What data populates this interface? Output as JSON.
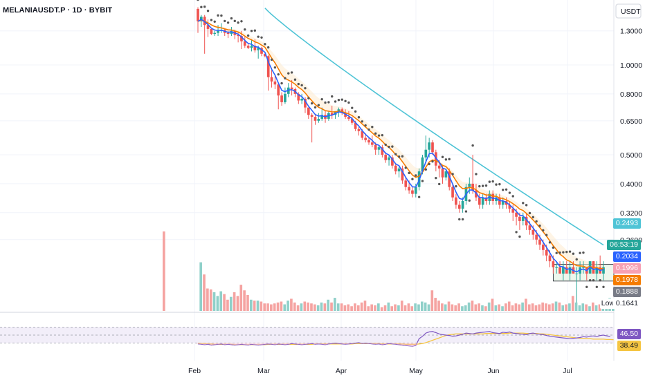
{
  "header": {
    "symbol_line": "MELANIAUSDT.P · 1D · BYBIT"
  },
  "price_axis": {
    "currency": "USDT",
    "ticks": [
      "1.3000",
      "1.0000",
      "0.8000",
      "0.6500",
      "0.5000",
      "0.4000",
      "0.3200",
      "0.2600"
    ]
  },
  "time_axis": {
    "labels": [
      "Feb",
      "Mar",
      "Apr",
      "May",
      "Jun",
      "Jul"
    ]
  },
  "price_tags": {
    "ma_slow": {
      "text": "0.2493",
      "color": "#4fc4d6"
    },
    "last_price": {
      "text": "06:53:19",
      "color": "#26a69a"
    },
    "ema_fast": {
      "text": "0.2034",
      "color": "#2962ff"
    },
    "ma_mid": {
      "text": "0.1996",
      "color": "#f7a0b3"
    },
    "ema_orange": {
      "text": "0.1978",
      "color": "#f57c00"
    },
    "range_bottom": {
      "text": "0.1888",
      "color": "#787b86"
    },
    "low": {
      "label": "Low",
      "text": "0.1641"
    }
  },
  "rsi_tags": {
    "rsi": {
      "text": "46.50",
      "color": "#7e57c2"
    },
    "rsi_ma": {
      "text": "38.49",
      "color": "#f5c542"
    }
  },
  "colors": {
    "up": "#26a69a",
    "down": "#ef5350",
    "up_volume": "#8fd0c9",
    "down_volume": "#f5a3a1",
    "ema_fast": "#2962ff",
    "ema_orange": "#f57c00",
    "ma_slow": "#4fc4d6",
    "sar": "#555555",
    "rsi_line": "#7e57c2",
    "rsi_ma": "#f5c542",
    "rsi_band": "#ede7f6"
  },
  "chart_data": {
    "type": "candlestick",
    "ohlc_series": [
      [
        1.54,
        1.56,
        1.28,
        1.4
      ],
      [
        1.4,
        1.47,
        1.34,
        1.45
      ],
      [
        1.45,
        1.47,
        1.09,
        1.36
      ],
      [
        1.36,
        1.42,
        1.24,
        1.32
      ],
      [
        1.32,
        1.32,
        1.26,
        1.27
      ],
      [
        1.27,
        1.3,
        1.25,
        1.28
      ],
      [
        1.28,
        1.36,
        1.25,
        1.3
      ],
      [
        1.3,
        1.38,
        1.28,
        1.31
      ],
      [
        1.31,
        1.32,
        1.25,
        1.28
      ],
      [
        1.28,
        1.3,
        1.23,
        1.27
      ],
      [
        1.27,
        1.34,
        1.25,
        1.3
      ],
      [
        1.3,
        1.31,
        1.22,
        1.26
      ],
      [
        1.26,
        1.29,
        1.19,
        1.25
      ],
      [
        1.25,
        1.3,
        1.13,
        1.2
      ],
      [
        1.2,
        1.24,
        1.14,
        1.16
      ],
      [
        1.16,
        1.18,
        1.13,
        1.14
      ],
      [
        1.14,
        1.22,
        1.11,
        1.16
      ],
      [
        1.16,
        1.22,
        1.1,
        1.12
      ],
      [
        1.12,
        1.16,
        1.05,
        1.14
      ],
      [
        1.14,
        1.15,
        1.07,
        1.09
      ],
      [
        1.09,
        1.09,
        1.06,
        1.07
      ],
      [
        1.07,
        1.08,
        0.82,
        0.91
      ],
      [
        0.91,
        0.98,
        0.84,
        0.88
      ],
      [
        0.88,
        0.92,
        0.83,
        0.86
      ],
      [
        0.86,
        0.87,
        0.71,
        0.79
      ],
      [
        0.79,
        0.81,
        0.73,
        0.75
      ],
      [
        0.75,
        0.84,
        0.74,
        0.8
      ],
      [
        0.8,
        0.87,
        0.78,
        0.84
      ],
      [
        0.84,
        0.89,
        0.79,
        0.83
      ],
      [
        0.83,
        0.84,
        0.78,
        0.8
      ],
      [
        0.8,
        0.81,
        0.74,
        0.76
      ],
      [
        0.76,
        0.8,
        0.74,
        0.77
      ],
      [
        0.77,
        0.78,
        0.69,
        0.72
      ],
      [
        0.72,
        0.72,
        0.66,
        0.68
      ],
      [
        0.68,
        0.69,
        0.55,
        0.67
      ],
      [
        0.67,
        0.68,
        0.63,
        0.65
      ],
      [
        0.65,
        0.69,
        0.64,
        0.66
      ],
      [
        0.66,
        0.72,
        0.65,
        0.68
      ],
      [
        0.68,
        0.7,
        0.64,
        0.66
      ],
      [
        0.66,
        0.7,
        0.65,
        0.69
      ],
      [
        0.69,
        0.73,
        0.66,
        0.68
      ],
      [
        0.68,
        0.7,
        0.66,
        0.7
      ],
      [
        0.7,
        0.72,
        0.67,
        0.71
      ],
      [
        0.71,
        0.72,
        0.68,
        0.69
      ],
      [
        0.69,
        0.71,
        0.66,
        0.67
      ],
      [
        0.67,
        0.7,
        0.65,
        0.66
      ],
      [
        0.66,
        0.67,
        0.63,
        0.64
      ],
      [
        0.64,
        0.65,
        0.6,
        0.61
      ],
      [
        0.61,
        0.62,
        0.58,
        0.6
      ],
      [
        0.6,
        0.61,
        0.56,
        0.57
      ],
      [
        0.57,
        0.59,
        0.55,
        0.56
      ],
      [
        0.56,
        0.57,
        0.54,
        0.55
      ],
      [
        0.55,
        0.58,
        0.53,
        0.54
      ],
      [
        0.54,
        0.55,
        0.5,
        0.52
      ],
      [
        0.52,
        0.54,
        0.5,
        0.53
      ],
      [
        0.53,
        0.54,
        0.49,
        0.5
      ],
      [
        0.5,
        0.51,
        0.47,
        0.48
      ],
      [
        0.48,
        0.5,
        0.46,
        0.49
      ],
      [
        0.49,
        0.5,
        0.45,
        0.46
      ],
      [
        0.46,
        0.47,
        0.43,
        0.44
      ],
      [
        0.44,
        0.46,
        0.42,
        0.45
      ],
      [
        0.45,
        0.46,
        0.4,
        0.41
      ],
      [
        0.41,
        0.42,
        0.38,
        0.39
      ],
      [
        0.39,
        0.41,
        0.37,
        0.38
      ],
      [
        0.38,
        0.39,
        0.36,
        0.37
      ],
      [
        0.37,
        0.4,
        0.36,
        0.39
      ],
      [
        0.39,
        0.45,
        0.38,
        0.44
      ],
      [
        0.44,
        0.5,
        0.43,
        0.49
      ],
      [
        0.49,
        0.58,
        0.47,
        0.52
      ],
      [
        0.52,
        0.57,
        0.49,
        0.55
      ],
      [
        0.55,
        0.56,
        0.5,
        0.51
      ],
      [
        0.51,
        0.52,
        0.44,
        0.46
      ],
      [
        0.46,
        0.48,
        0.42,
        0.45
      ],
      [
        0.45,
        0.46,
        0.4,
        0.42
      ],
      [
        0.42,
        0.45,
        0.41,
        0.44
      ],
      [
        0.44,
        0.45,
        0.38,
        0.39
      ],
      [
        0.39,
        0.4,
        0.35,
        0.36
      ],
      [
        0.36,
        0.37,
        0.33,
        0.34
      ],
      [
        0.34,
        0.35,
        0.32,
        0.33
      ],
      [
        0.33,
        0.36,
        0.32,
        0.35
      ],
      [
        0.35,
        0.4,
        0.34,
        0.39
      ],
      [
        0.39,
        0.42,
        0.37,
        0.4
      ],
      [
        0.4,
        0.5,
        0.37,
        0.38
      ],
      [
        0.38,
        0.4,
        0.35,
        0.36
      ],
      [
        0.36,
        0.37,
        0.33,
        0.34
      ],
      [
        0.34,
        0.37,
        0.33,
        0.36
      ],
      [
        0.36,
        0.37,
        0.34,
        0.35
      ],
      [
        0.35,
        0.38,
        0.34,
        0.37
      ],
      [
        0.37,
        0.38,
        0.34,
        0.35
      ],
      [
        0.35,
        0.37,
        0.34,
        0.36
      ],
      [
        0.36,
        0.37,
        0.33,
        0.34
      ],
      [
        0.34,
        0.36,
        0.33,
        0.35
      ],
      [
        0.35,
        0.36,
        0.33,
        0.34
      ],
      [
        0.34,
        0.35,
        0.32,
        0.33
      ],
      [
        0.33,
        0.34,
        0.3,
        0.32
      ],
      [
        0.32,
        0.33,
        0.29,
        0.31
      ],
      [
        0.31,
        0.32,
        0.28,
        0.3
      ],
      [
        0.3,
        0.32,
        0.29,
        0.31
      ],
      [
        0.31,
        0.32,
        0.28,
        0.29
      ],
      [
        0.29,
        0.3,
        0.27,
        0.28
      ],
      [
        0.28,
        0.29,
        0.26,
        0.27
      ],
      [
        0.27,
        0.28,
        0.25,
        0.26
      ],
      [
        0.26,
        0.27,
        0.24,
        0.25
      ],
      [
        0.25,
        0.26,
        0.23,
        0.24
      ],
      [
        0.24,
        0.25,
        0.22,
        0.23
      ],
      [
        0.23,
        0.24,
        0.21,
        0.22
      ],
      [
        0.22,
        0.23,
        0.2,
        0.21
      ],
      [
        0.21,
        0.22,
        0.2,
        0.21
      ],
      [
        0.21,
        0.22,
        0.2,
        0.2
      ],
      [
        0.2,
        0.22,
        0.19,
        0.21
      ],
      [
        0.21,
        0.22,
        0.2,
        0.2
      ],
      [
        0.2,
        0.22,
        0.19,
        0.21
      ],
      [
        0.21,
        0.22,
        0.2,
        0.2
      ],
      [
        0.2,
        0.21,
        0.16,
        0.2
      ],
      [
        0.2,
        0.22,
        0.19,
        0.21
      ],
      [
        0.21,
        0.22,
        0.2,
        0.21
      ],
      [
        0.21,
        0.21,
        0.19,
        0.2
      ],
      [
        0.2,
        0.22,
        0.2,
        0.22
      ],
      [
        0.22,
        0.22,
        0.2,
        0.2
      ],
      [
        0.2,
        0.22,
        0.19,
        0.21
      ],
      [
        0.21,
        0.23,
        0.2,
        0.2
      ],
      [
        0.2,
        0.22,
        0.19,
        0.21
      ]
    ],
    "volume": [
      8.5,
      5.2,
      3.9,
      2.4,
      2.3,
      2.0,
      1.6,
      2.1,
      1.8,
      1.2,
      1.5,
      2.0,
      1.6,
      2.8,
      2.2,
      1.7,
      1.2,
      1.1,
      1.1,
      1.0,
      0.8,
      0.8,
      0.7,
      0.8,
      0.9,
      1.0,
      0.7,
      1.1,
      1.3,
      0.9,
      0.6,
      0.8,
      1.0,
      0.9,
      0.8,
      0.7,
      0.6,
      0.9,
      0.8,
      1.2,
      0.9,
      1.4,
      0.8,
      0.8,
      0.6,
      0.7,
      0.5,
      0.8,
      0.6,
      0.9,
      1.1,
      0.5,
      0.7,
      0.6,
      0.8,
      0.4,
      0.6,
      0.9,
      0.5,
      0.7,
      0.6,
      1.1,
      0.6,
      0.8,
      0.5,
      0.8,
      0.7,
      1.0,
      0.9,
      0.7,
      2.2,
      1.4,
      1.1,
      0.8,
      0.7,
      1.0,
      0.7,
      0.6,
      0.8,
      0.5,
      0.6,
      0.9,
      1.1,
      0.7,
      0.8,
      0.6,
      0.5,
      0.9,
      1.3,
      0.6,
      0.7,
      0.5,
      0.8,
      1.0,
      0.6,
      0.8,
      0.7,
      0.9,
      1.3,
      0.7,
      0.8,
      0.6,
      0.7,
      0.9,
      0.8,
      0.7,
      0.8,
      1.0,
      0.9,
      0.6,
      0.7,
      0.8,
      1.6,
      0.9,
      0.6,
      0.8,
      0.7,
      0.5,
      0.9,
      0.6,
      0.7,
      1.1,
      1.0,
      1.4,
      1.2
    ],
    "rsi": [
      28,
      27,
      26,
      27,
      25,
      26,
      27,
      28,
      26,
      27,
      26,
      25,
      26,
      27,
      26,
      25,
      27,
      26,
      25,
      26,
      27,
      28,
      27,
      26,
      28,
      27,
      26,
      27,
      29,
      28,
      27,
      26,
      27,
      28,
      29,
      27,
      28,
      27,
      26,
      28,
      29,
      30,
      29,
      28,
      27,
      28,
      29,
      30,
      31,
      29,
      30,
      29,
      28,
      27,
      28,
      26,
      27,
      29,
      28,
      27,
      26,
      25,
      24,
      23,
      22,
      24,
      41,
      47,
      55,
      58,
      59,
      56,
      53,
      51,
      50,
      49,
      47,
      48,
      50,
      52,
      55,
      54,
      53,
      55,
      56,
      57,
      58,
      59,
      56,
      55,
      54,
      57,
      56,
      58,
      55,
      54,
      53,
      52,
      51,
      54,
      55,
      53,
      52,
      51,
      49,
      47,
      46,
      45,
      44,
      43,
      42,
      41,
      42,
      43,
      44,
      46,
      45,
      47,
      48,
      46,
      49,
      50,
      48,
      46.5
    ],
    "rsi_ma": [
      30,
      29,
      29,
      28,
      28,
      27,
      27,
      27,
      27,
      27,
      27,
      26,
      26,
      26,
      26,
      26,
      26,
      26,
      26,
      26,
      26,
      27,
      27,
      27,
      27,
      27,
      27,
      27,
      27,
      27,
      27,
      27,
      27,
      27,
      27,
      28,
      28,
      28,
      28,
      28,
      28,
      28,
      28,
      28,
      28,
      28,
      28,
      29,
      29,
      29,
      29,
      29,
      29,
      29,
      29,
      28,
      28,
      28,
      28,
      28,
      28,
      28,
      27,
      27,
      27,
      27,
      28,
      29,
      31,
      34,
      37,
      40,
      43,
      46,
      49,
      51,
      52,
      53,
      53,
      53,
      53,
      53,
      53,
      53,
      53,
      53,
      54,
      54,
      54,
      54,
      54,
      54,
      54,
      55,
      55,
      55,
      55,
      55,
      54,
      54,
      54,
      54,
      53,
      53,
      52,
      51,
      50,
      49,
      48,
      47,
      46,
      45,
      44,
      43,
      42,
      42,
      41,
      41,
      40,
      40,
      40,
      40,
      39,
      39,
      38.49
    ],
    "ema_fast": [],
    "ma_slow_start": 1.55,
    "last_values": {
      "ma_slow": 0.2493,
      "ema_fast": 0.2034,
      "ma_mid": 0.1996,
      "ema_orange": 0.1978,
      "range_bottom": 0.1888,
      "low": 0.1641,
      "rsi": 46.5,
      "rsi_ma": 38.49
    }
  }
}
